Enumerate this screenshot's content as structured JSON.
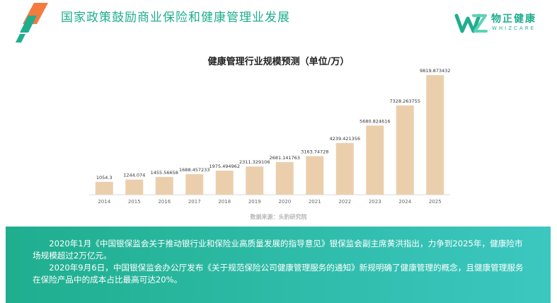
{
  "header": {
    "title": "国家政策鼓励商业保险和健康管理业发展"
  },
  "brand": {
    "name_cn": "物正健康",
    "name_en": "WHIZCARE",
    "logo_icon": "whizcare-logo-icon",
    "color": "#1fae8e"
  },
  "chart_data": {
    "type": "bar",
    "title": "健康管理行业规模预测（单位/万）",
    "categories": [
      "2014",
      "2015",
      "2016",
      "2017",
      "2018",
      "2019",
      "2020",
      "2021",
      "2022",
      "2023",
      "2024",
      "2025"
    ],
    "values": [
      1054.3,
      1244.074,
      1455.56658,
      1688.457233,
      1975.494962,
      2311.329106,
      2681.141763,
      3163.74728,
      4239.421356,
      5680.824616,
      7328.263755,
      9819.873432
    ],
    "labels": [
      "1054.3",
      "1244.074",
      "1455.56658",
      "1688.457233",
      "1975.494962",
      "2311.329106",
      "2681.141763",
      "3163.74728",
      "4239.421356",
      "5680.824616",
      "7328.263755",
      "9819.873432"
    ],
    "ylim": [
      0,
      10000
    ],
    "bar_color": "#ebcfad",
    "grid": false
  },
  "source": "数据来源：头豹研究院",
  "info": {
    "paragraphs": [
      "2020年1月《中国银保监会关于推动银行业和保险业高质量发展的指导意见》银保监会副主席黄洪指出，力争到2025年，健康险市场规模超过2万亿元。",
      "2020年9月6日，中国银保监会办公厅发布《关于规范保险公司健康管理服务的通知》新规明确了健康管理的概念，且健康管理服务在保险产品中的成本占比最高可达20%。"
    ],
    "gradient_start": "#1fae8e",
    "gradient_end": "#3cc7c0"
  }
}
